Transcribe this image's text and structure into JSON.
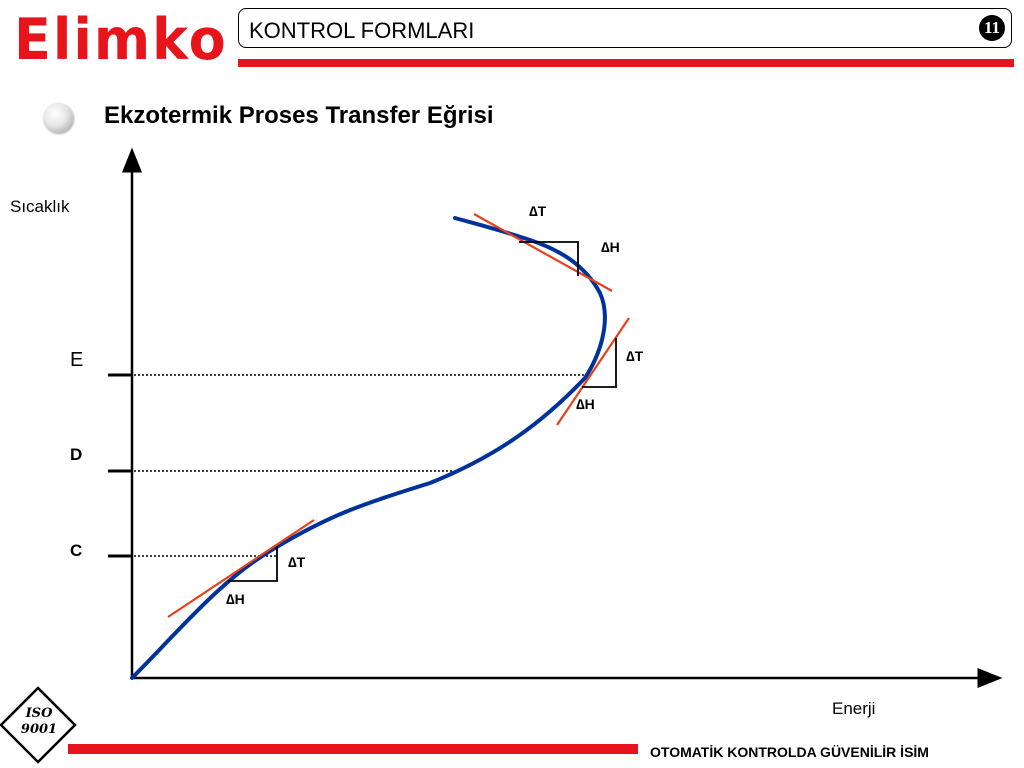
{
  "header": {
    "logo": "Elimko",
    "title": "KONTROL FORMLARI",
    "page_number": "11"
  },
  "slide": {
    "heading": "Ekzotermik Proses Transfer Eğrisi"
  },
  "diagram": {
    "y_axis_label": "Sıcaklık",
    "x_axis_label": "Enerji",
    "levels": {
      "e": "E",
      "d": "D",
      "c": "C"
    },
    "delta_t": "∆T",
    "delta_h": "∆H",
    "colors": {
      "curve": "#003399",
      "tangent": "#e8401c",
      "brand_red": "#e8141c"
    }
  },
  "footer": {
    "iso_line1": "ISO",
    "iso_line2": "9001",
    "text": "OTOMATİK KONTROLDA GÜVENİLİR İSİM"
  }
}
